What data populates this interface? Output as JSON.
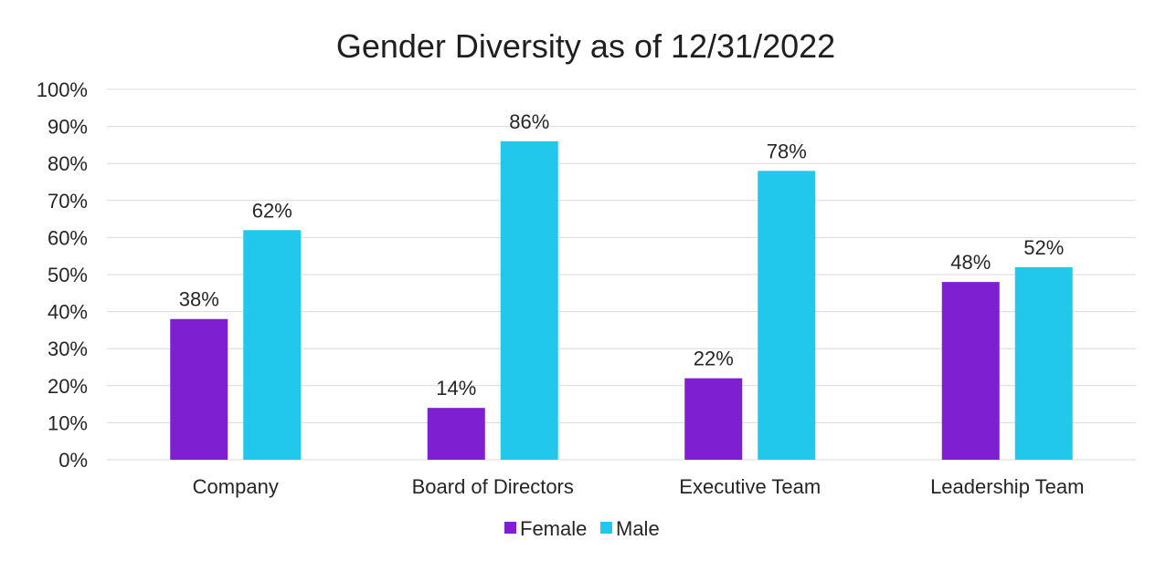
{
  "chart_data": {
    "type": "bar",
    "title": "Gender Diversity as of 12/31/2022",
    "xlabel": "",
    "ylabel": "",
    "categories": [
      "Company",
      "Board of Directors",
      "Executive Team",
      "Leadership Team"
    ],
    "series": [
      {
        "name": "Female",
        "color": "#7e1fd1",
        "values": [
          38,
          14,
          22,
          48
        ],
        "labels": [
          "38%",
          "14%",
          "22%",
          "48%"
        ]
      },
      {
        "name": "Male",
        "color": "#22c8ec",
        "values": [
          62,
          86,
          78,
          52
        ],
        "labels": [
          "62%",
          "86%",
          "78%",
          "52%"
        ]
      }
    ],
    "ylim": [
      0,
      100
    ],
    "yticks": [
      "0%",
      "10%",
      "20%",
      "30%",
      "40%",
      "50%",
      "60%",
      "70%",
      "80%",
      "90%",
      "100%"
    ],
    "grid": true,
    "legend_position": "bottom"
  }
}
